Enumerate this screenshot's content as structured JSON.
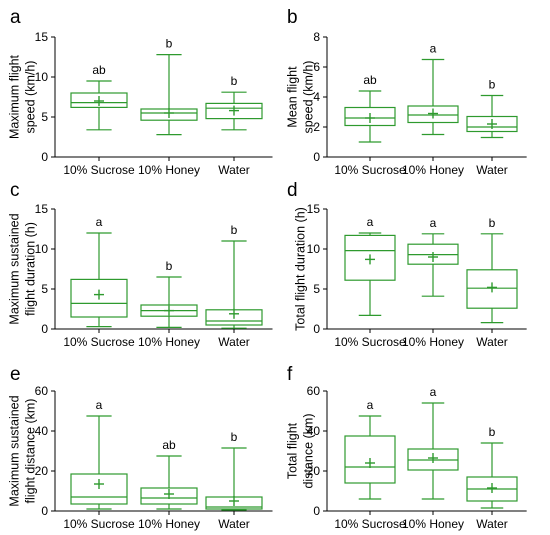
{
  "chart_data": [
    {
      "panel": "a",
      "type": "box",
      "ylabel": [
        "Maximum flight",
        "speed (km/h)"
      ],
      "ylim": [
        0,
        15
      ],
      "yticks": [
        0,
        5,
        10,
        15
      ],
      "categories": [
        "10% Sucrose",
        "10% Honey",
        "Water"
      ],
      "boxes": [
        {
          "min": 3.4,
          "q1": 6.2,
          "median": 6.8,
          "q3": 8.0,
          "max": 9.5,
          "mean": 7.0,
          "letter": "ab"
        },
        {
          "min": 2.8,
          "q1": 4.6,
          "median": 5.5,
          "q3": 6.0,
          "max": 12.8,
          "mean": 5.5,
          "letter": "b"
        },
        {
          "min": 3.4,
          "q1": 4.8,
          "median": 6.1,
          "q3": 6.7,
          "max": 8.1,
          "mean": 5.8,
          "letter": "b"
        }
      ]
    },
    {
      "panel": "b",
      "type": "box",
      "ylabel": [
        "Mean flight",
        "speed (km/h)"
      ],
      "ylim": [
        0,
        8
      ],
      "yticks": [
        0,
        2,
        4,
        6,
        8
      ],
      "categories": [
        "10% Sucrose",
        "10% Honey",
        "Water"
      ],
      "boxes": [
        {
          "min": 1.0,
          "q1": 2.1,
          "median": 2.6,
          "q3": 3.3,
          "max": 4.4,
          "mean": 2.6,
          "letter": "ab"
        },
        {
          "min": 1.5,
          "q1": 2.3,
          "median": 2.8,
          "q3": 3.4,
          "max": 6.5,
          "mean": 2.9,
          "letter": "a"
        },
        {
          "min": 1.3,
          "q1": 1.7,
          "median": 2.0,
          "q3": 2.7,
          "max": 4.1,
          "mean": 2.2,
          "letter": "b"
        }
      ]
    },
    {
      "panel": "c",
      "type": "box",
      "ylabel": [
        "Maximum sustained",
        "flight duration (h)"
      ],
      "ylim": [
        0,
        15
      ],
      "yticks": [
        0,
        5,
        10,
        15
      ],
      "categories": [
        "10% Sucrose",
        "10% Honey",
        "Water"
      ],
      "boxes": [
        {
          "min": 0.3,
          "q1": 1.5,
          "median": 3.2,
          "q3": 6.2,
          "max": 12.0,
          "mean": 4.3,
          "letter": "a"
        },
        {
          "min": 0.2,
          "q1": 1.6,
          "median": 2.3,
          "q3": 3.0,
          "max": 6.5,
          "mean": 2.3,
          "letter": "b"
        },
        {
          "min": 0.1,
          "q1": 0.5,
          "median": 1.0,
          "q3": 2.4,
          "max": 11.0,
          "mean": 1.9,
          "letter": "b"
        }
      ]
    },
    {
      "panel": "d",
      "type": "box",
      "ylabel": [
        "Total flight duration (h)"
      ],
      "ylim": [
        0,
        15
      ],
      "yticks": [
        0,
        5,
        10,
        15
      ],
      "categories": [
        "10% Sucrose",
        "10% Honey",
        "Water"
      ],
      "boxes": [
        {
          "min": 1.7,
          "q1": 6.1,
          "median": 9.8,
          "q3": 11.7,
          "max": 12.0,
          "mean": 8.7,
          "letter": "a"
        },
        {
          "min": 4.1,
          "q1": 8.1,
          "median": 9.3,
          "q3": 10.6,
          "max": 11.9,
          "mean": 9.0,
          "letter": "a"
        },
        {
          "min": 0.8,
          "q1": 2.6,
          "median": 5.1,
          "q3": 7.4,
          "max": 11.9,
          "mean": 5.2,
          "letter": "b"
        }
      ]
    },
    {
      "panel": "e",
      "type": "box",
      "ylabel": [
        "Maximum sustained",
        "flight distance (km)"
      ],
      "ylim": [
        0,
        60
      ],
      "yticks": [
        0,
        20,
        40,
        60
      ],
      "categories": [
        "10% Sucrose",
        "10% Honey",
        "Water"
      ],
      "boxes": [
        {
          "min": 1.0,
          "q1": 3.5,
          "median": 7.0,
          "q3": 18.5,
          "max": 47.5,
          "mean": 13.5,
          "letter": "a"
        },
        {
          "min": 1.0,
          "q1": 3.5,
          "median": 6.5,
          "q3": 11.5,
          "max": 27.5,
          "mean": 8.5,
          "letter": "ab"
        },
        {
          "min": 0.5,
          "q1": 1.0,
          "median": 2.0,
          "q3": 7.0,
          "max": 31.5,
          "mean": 5.0,
          "letter": "b"
        }
      ]
    },
    {
      "panel": "f",
      "type": "box",
      "ylabel": [
        "Total flight",
        "distance (km)"
      ],
      "ylim": [
        0,
        60
      ],
      "yticks": [
        0,
        20,
        40,
        60
      ],
      "categories": [
        "10% Sucrose",
        "10% Honey",
        "Water"
      ],
      "boxes": [
        {
          "min": 6.0,
          "q1": 14.0,
          "median": 22.0,
          "q3": 37.5,
          "max": 47.5,
          "mean": 24.0,
          "letter": "a"
        },
        {
          "min": 6.0,
          "q1": 20.5,
          "median": 25.5,
          "q3": 31.0,
          "max": 54.0,
          "mean": 26.5,
          "letter": "a"
        },
        {
          "min": 1.5,
          "q1": 5.0,
          "median": 11.0,
          "q3": 17.0,
          "max": 34.0,
          "mean": 11.5,
          "letter": "b"
        }
      ]
    }
  ],
  "colors": {
    "box": "#2e9a2e",
    "axis": "#000000"
  }
}
